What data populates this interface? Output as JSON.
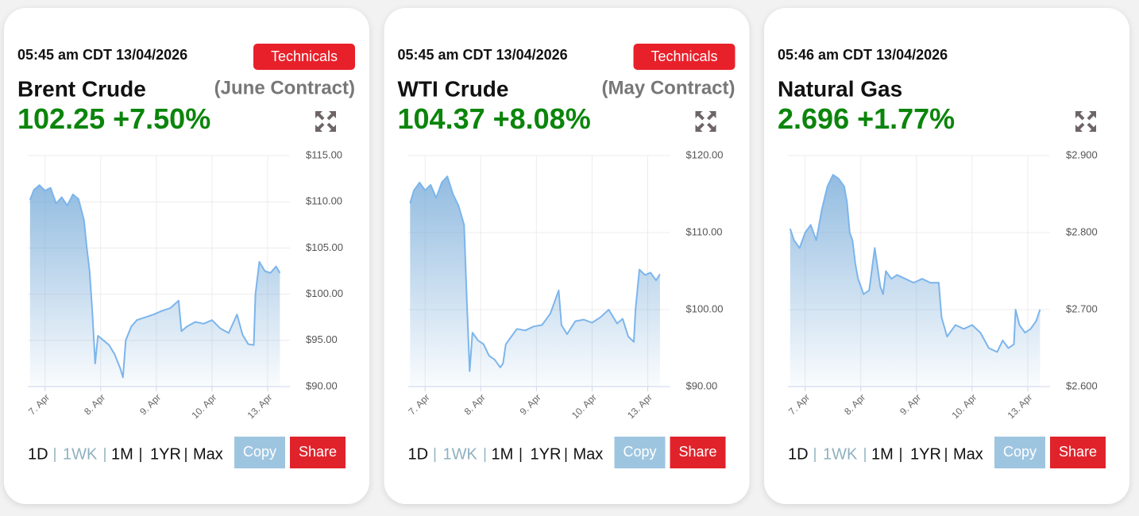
{
  "chart_data": [
    {
      "type": "line",
      "timestamp": "05:45 am CDT 13/04/2026",
      "button": "Technicals",
      "title": "Brent Crude",
      "subtitle": "(June Contract)",
      "price": 102.25,
      "change": "+7.50%",
      "x": [
        -0.27,
        -0.2,
        -0.1,
        0,
        0.1,
        0.2,
        0.3,
        0.4,
        0.5,
        0.6,
        0.7,
        0.75,
        0.8,
        0.85,
        0.9,
        0.95,
        1.05,
        1.15,
        1.25,
        1.35,
        1.4,
        1.45,
        1.55,
        1.65,
        1.8,
        1.95,
        2.1,
        2.25,
        2.4,
        2.45,
        2.55,
        2.7,
        2.85,
        3.0,
        3.15,
        3.3,
        3.45,
        3.55,
        3.65,
        3.75,
        3.78,
        3.85,
        3.95,
        4.05,
        4.15,
        4.22
      ],
      "values": [
        110.2,
        111.3,
        111.8,
        111.2,
        111.5,
        109.8,
        110.5,
        109.6,
        110.8,
        110.3,
        108,
        105,
        102.5,
        98,
        92.5,
        95.5,
        95,
        94.5,
        93.5,
        92,
        91,
        95,
        96.5,
        97.2,
        97.5,
        97.8,
        98.2,
        98.5,
        99.3,
        96,
        96.5,
        97,
        96.8,
        97.2,
        96.3,
        95.8,
        97.8,
        95.6,
        94.6,
        94.5,
        100,
        103.5,
        102.5,
        102.3,
        103,
        102.3
      ],
      "color": "#7cb5ec",
      "grid": true,
      "xlim": [
        -0.31,
        4.4
      ],
      "xticks": [
        {
          "value": 0,
          "label": "7. Apr"
        },
        {
          "value": 1,
          "label": "8. Apr"
        },
        {
          "value": 2,
          "label": "9. Apr"
        },
        {
          "value": 3,
          "label": "10. Apr"
        },
        {
          "value": 4,
          "label": "13. Apr"
        }
      ],
      "ylim": [
        90,
        115
      ],
      "yticks": [
        {
          "value": 90,
          "label": "$90.00"
        },
        {
          "value": 95,
          "label": "$95.00"
        },
        {
          "value": 100,
          "label": "$100.00"
        },
        {
          "value": 105,
          "label": "$105.00"
        },
        {
          "value": 110,
          "label": "$110.00"
        },
        {
          "value": 115,
          "label": "$115.00"
        }
      ],
      "ranges": [
        "1D",
        "1WK",
        "1M",
        "1YR",
        "Max"
      ],
      "active_range": 1,
      "actions": [
        "Copy",
        "Share"
      ]
    },
    {
      "type": "line",
      "timestamp": "05:45 am CDT 13/04/2026",
      "button": "Technicals",
      "title": "WTI Crude",
      "subtitle": "(May Contract)",
      "price": 104.37,
      "change": "+8.08%",
      "x": [
        -0.27,
        -0.2,
        -0.1,
        0,
        0.1,
        0.2,
        0.3,
        0.4,
        0.5,
        0.6,
        0.7,
        0.75,
        0.8,
        0.85,
        0.9,
        0.95,
        1.05,
        1.15,
        1.25,
        1.35,
        1.4,
        1.45,
        1.55,
        1.65,
        1.8,
        1.95,
        2.1,
        2.25,
        2.4,
        2.45,
        2.55,
        2.7,
        2.85,
        3.0,
        3.15,
        3.3,
        3.45,
        3.55,
        3.65,
        3.75,
        3.78,
        3.85,
        3.95,
        4.05,
        4.15,
        4.22
      ],
      "values": [
        113.8,
        115.5,
        116.5,
        115.5,
        116.2,
        114.5,
        116.5,
        117.3,
        115,
        113.5,
        111,
        101,
        92,
        97,
        96.5,
        96,
        95.5,
        94,
        93.5,
        92.5,
        93,
        95.5,
        96.5,
        97.5,
        97.3,
        97.8,
        98,
        99.5,
        102.5,
        98,
        96.8,
        98.5,
        98.7,
        98.3,
        99,
        100,
        98.2,
        98.8,
        96.5,
        95.8,
        100,
        105.2,
        104.5,
        104.8,
        103.8,
        104.6
      ],
      "color": "#7cb5ec",
      "grid": true,
      "xlim": [
        -0.31,
        4.4
      ],
      "xticks": [
        {
          "value": 0,
          "label": "7. Apr"
        },
        {
          "value": 1,
          "label": "8. Apr"
        },
        {
          "value": 2,
          "label": "9. Apr"
        },
        {
          "value": 3,
          "label": "10. Apr"
        },
        {
          "value": 4,
          "label": "13. Apr"
        }
      ],
      "ylim": [
        90,
        120
      ],
      "yticks": [
        {
          "value": 90,
          "label": "$90.00"
        },
        {
          "value": 100,
          "label": "$100.00"
        },
        {
          "value": 110,
          "label": "$110.00"
        },
        {
          "value": 120,
          "label": "$120.00"
        }
      ],
      "ranges": [
        "1D",
        "1WK",
        "1M",
        "1YR",
        "Max"
      ],
      "active_range": 1,
      "actions": [
        "Copy",
        "Share"
      ]
    },
    {
      "type": "line",
      "timestamp": "05:46 am CDT 13/04/2026",
      "title": "Natural Gas",
      "price": 2.696,
      "change": "+1.77%",
      "x": [
        -0.27,
        -0.2,
        -0.1,
        0,
        0.1,
        0.2,
        0.3,
        0.4,
        0.5,
        0.6,
        0.7,
        0.75,
        0.8,
        0.85,
        0.9,
        0.95,
        1.05,
        1.15,
        1.25,
        1.35,
        1.4,
        1.45,
        1.55,
        1.65,
        1.8,
        1.95,
        2.1,
        2.25,
        2.4,
        2.45,
        2.55,
        2.7,
        2.85,
        3.0,
        3.15,
        3.3,
        3.45,
        3.55,
        3.65,
        3.75,
        3.78,
        3.85,
        3.95,
        4.05,
        4.15,
        4.22
      ],
      "values": [
        2.805,
        2.79,
        2.78,
        2.8,
        2.81,
        2.79,
        2.83,
        2.86,
        2.875,
        2.87,
        2.86,
        2.84,
        2.8,
        2.79,
        2.76,
        2.74,
        2.72,
        2.725,
        2.78,
        2.73,
        2.72,
        2.75,
        2.74,
        2.745,
        2.74,
        2.735,
        2.74,
        2.735,
        2.735,
        2.69,
        2.665,
        2.68,
        2.675,
        2.68,
        2.67,
        2.65,
        2.645,
        2.66,
        2.65,
        2.655,
        2.7,
        2.68,
        2.67,
        2.675,
        2.685,
        2.7
      ],
      "color": "#7cb5ec",
      "grid": true,
      "xlim": [
        -0.31,
        4.4
      ],
      "xticks": [
        {
          "value": 0,
          "label": "7. Apr"
        },
        {
          "value": 1,
          "label": "8. Apr"
        },
        {
          "value": 2,
          "label": "9. Apr"
        },
        {
          "value": 3,
          "label": "10. Apr"
        },
        {
          "value": 4,
          "label": "13. Apr"
        }
      ],
      "ylim": [
        2.6,
        2.9
      ],
      "yticks": [
        {
          "value": 2.6,
          "label": "$2.600"
        },
        {
          "value": 2.7,
          "label": "$2.700"
        },
        {
          "value": 2.8,
          "label": "$2.800"
        },
        {
          "value": 2.9,
          "label": "$2.900"
        }
      ],
      "ranges": [
        "1D",
        "1WK",
        "1M",
        "1YR",
        "Max"
      ],
      "active_range": 1,
      "actions": [
        "Copy",
        "Share"
      ]
    }
  ]
}
